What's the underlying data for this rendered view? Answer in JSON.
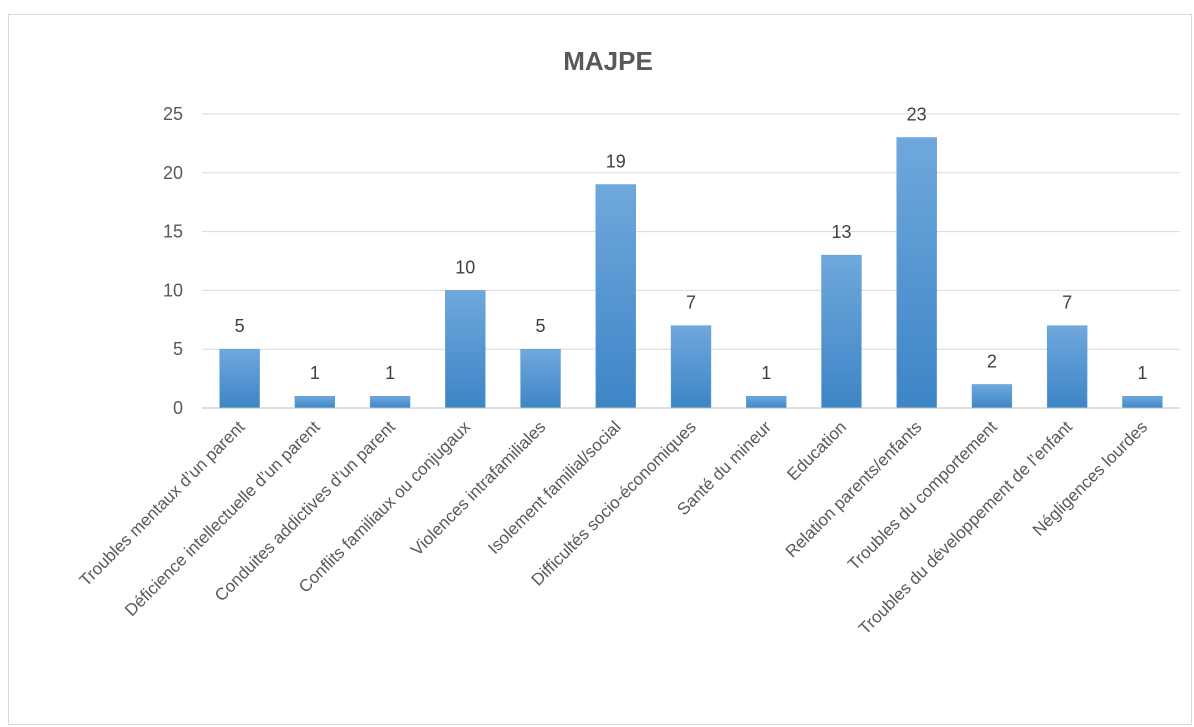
{
  "chart_data": {
    "type": "bar",
    "title": "MAJPE",
    "categories": [
      "Troubles mentaux d’un parent",
      "Déficience intellectuelle d’un parent",
      "Conduites addictives d’un parent",
      "Conflits familiaux ou conjugaux",
      "Violences intrafamiliales",
      "Isolement familial/social",
      "Difficultés socio-économiques",
      "Santé du mineur",
      "Education",
      "Relation parents/enfants",
      "Troubles du comportement",
      "Troubles du développement de l’enfant",
      "Négligences lourdes"
    ],
    "values": [
      5,
      1,
      1,
      10,
      5,
      19,
      7,
      1,
      13,
      23,
      2,
      7,
      1
    ],
    "ylim": [
      0,
      25
    ],
    "yticks": [
      0,
      5,
      10,
      15,
      20,
      25
    ],
    "grid": true,
    "legend": "none",
    "bar_color_top": "#6fa8dc",
    "bar_color_bottom": "#3d85c6"
  }
}
